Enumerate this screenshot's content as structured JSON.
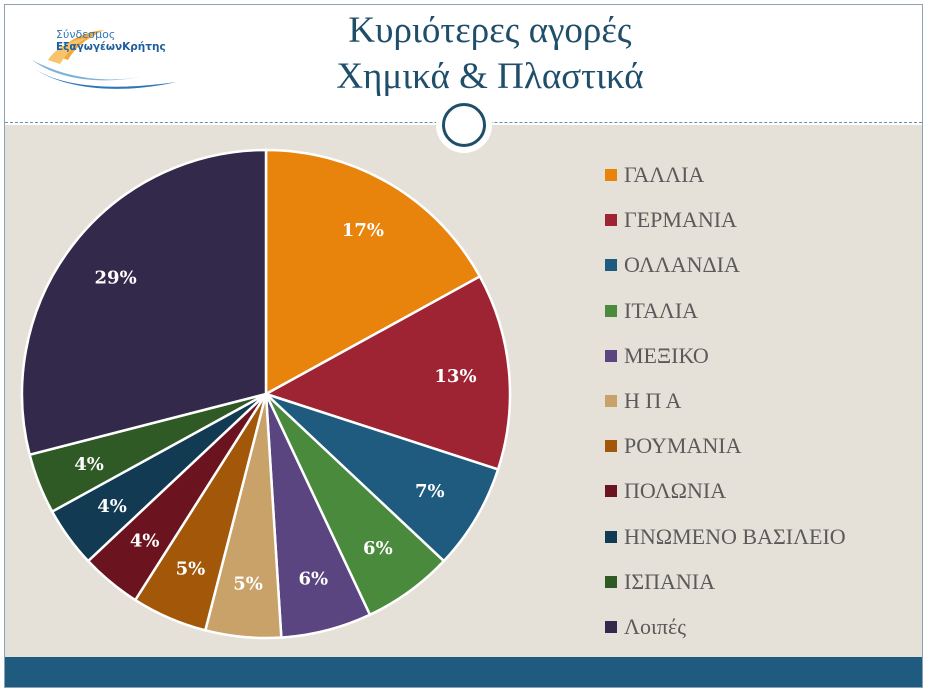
{
  "header": {
    "title_line1": "Κυριότερες αγορές",
    "title_line2": "Χημικά & Πλαστικά",
    "logo_line1": "Σύνδεσμος",
    "logo_line2": "ΕξαγωγέωνΚρήτης"
  },
  "chart_data": {
    "type": "pie",
    "title": "Κυριότερες αγορές Χημικά & Πλαστικά",
    "legend_position": "right",
    "slices": [
      {
        "label": "ΓΑΛΛΙΑ",
        "value": 17,
        "value_label": "17%",
        "color": "#e8830c"
      },
      {
        "label": "ΓΕΡΜΑΝΙΑ",
        "value": 13,
        "value_label": "13%",
        "color": "#9e2433"
      },
      {
        "label": "ΟΛΛΑΝΔΙΑ",
        "value": 7,
        "value_label": "7%",
        "color": "#1e5b7e"
      },
      {
        "label": "ΙΤΑΛΙΑ",
        "value": 6,
        "value_label": "6%",
        "color": "#4a8a3c"
      },
      {
        "label": "ΜΕΞΙΚΟ",
        "value": 6,
        "value_label": "6%",
        "color": "#5a4580"
      },
      {
        "label": "Η Π Α",
        "value": 5,
        "value_label": "5%",
        "color": "#c9a26a"
      },
      {
        "label": "ΡΟΥΜΑΝΙΑ",
        "value": 5,
        "value_label": "5%",
        "color": "#a35709"
      },
      {
        "label": "ΠΟΛΩΝΙΑ",
        "value": 4,
        "value_label": "4%",
        "color": "#6b1420"
      },
      {
        "label": "ΗΝΩΜΕΝΟ ΒΑΣΙΛΕΙΟ",
        "value": 4,
        "value_label": "4%",
        "color": "#123a52"
      },
      {
        "label": "ΙΣΠΑΝΙΑ",
        "value": 4,
        "value_label": "4%",
        "color": "#2f5a26"
      },
      {
        "label": "Λοιπές",
        "value": 29,
        "value_label": "29%",
        "color": "#33294a"
      }
    ]
  }
}
